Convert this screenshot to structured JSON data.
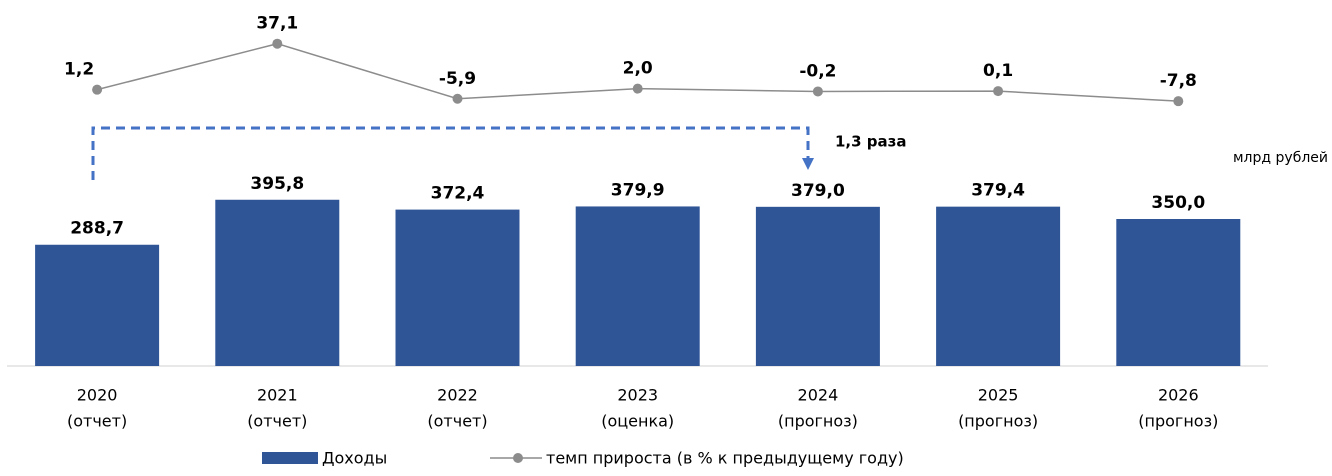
{
  "chart_data": {
    "type": "bar_line",
    "unit_label": "млрд рублей",
    "annotation": "1,3 раза",
    "categories": [
      [
        "2020",
        "(отчет)"
      ],
      [
        "2021",
        "(отчет)"
      ],
      [
        "2022",
        "(отчет)"
      ],
      [
        "2023",
        "(оценка)"
      ],
      [
        "2024",
        "(прогноз)"
      ],
      [
        "2025",
        "(прогноз)"
      ],
      [
        "2026",
        "(прогноз)"
      ]
    ],
    "ylim": [
      0,
      450
    ],
    "y2lim": [
      -10,
      40
    ],
    "series": [
      {
        "name": "Доходы",
        "type": "bar",
        "color": "#2f5597",
        "values": [
          288.7,
          395.8,
          372.4,
          379.9,
          379.0,
          379.4,
          350.0
        ],
        "value_labels": [
          "288,7",
          "395,8",
          "372,4",
          "379,9",
          "379,0",
          "379,4",
          "350,0"
        ]
      },
      {
        "name": "темп прироста (в % к предыдущему году)",
        "type": "line",
        "axis": "y2",
        "color": "#8c8c8c",
        "values": [
          1.2,
          37.1,
          -5.9,
          2.0,
          -0.2,
          0.1,
          -7.8
        ],
        "value_labels": [
          "1,2",
          "37,1",
          "-5,9",
          "2,0",
          "-0,2",
          "0,1",
          "-7,8"
        ]
      }
    ]
  }
}
